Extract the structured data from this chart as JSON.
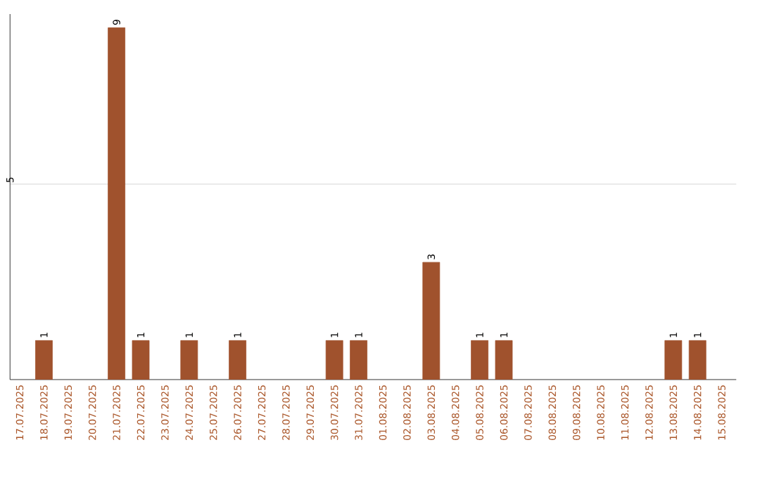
{
  "chart_data": {
    "type": "bar",
    "categories": [
      "17.07.2025",
      "18.07.2025",
      "19.07.2025",
      "20.07.2025",
      "21.07.2025",
      "22.07.2025",
      "23.07.2025",
      "24.07.2025",
      "25.07.2025",
      "26.07.2025",
      "27.07.2025",
      "28.07.2025",
      "29.07.2025",
      "30.07.2025",
      "31.07.2025",
      "01.08.2025",
      "02.08.2025",
      "03.08.2025",
      "04.08.2025",
      "05.08.2025",
      "06.08.2025",
      "07.08.2025",
      "08.08.2025",
      "09.08.2025",
      "10.08.2025",
      "11.08.2025",
      "12.08.2025",
      "13.08.2025",
      "14.08.2025",
      "15.08.2025"
    ],
    "values": [
      null,
      1,
      null,
      null,
      9,
      1,
      null,
      1,
      null,
      1,
      null,
      null,
      null,
      1,
      1,
      null,
      null,
      3,
      null,
      1,
      1,
      null,
      null,
      null,
      null,
      null,
      null,
      1,
      1,
      null
    ],
    "color": "#a0522d",
    "ylim": [
      0,
      9.35
    ],
    "yticks": [
      5
    ],
    "grid": "y",
    "data_labels": true
  }
}
